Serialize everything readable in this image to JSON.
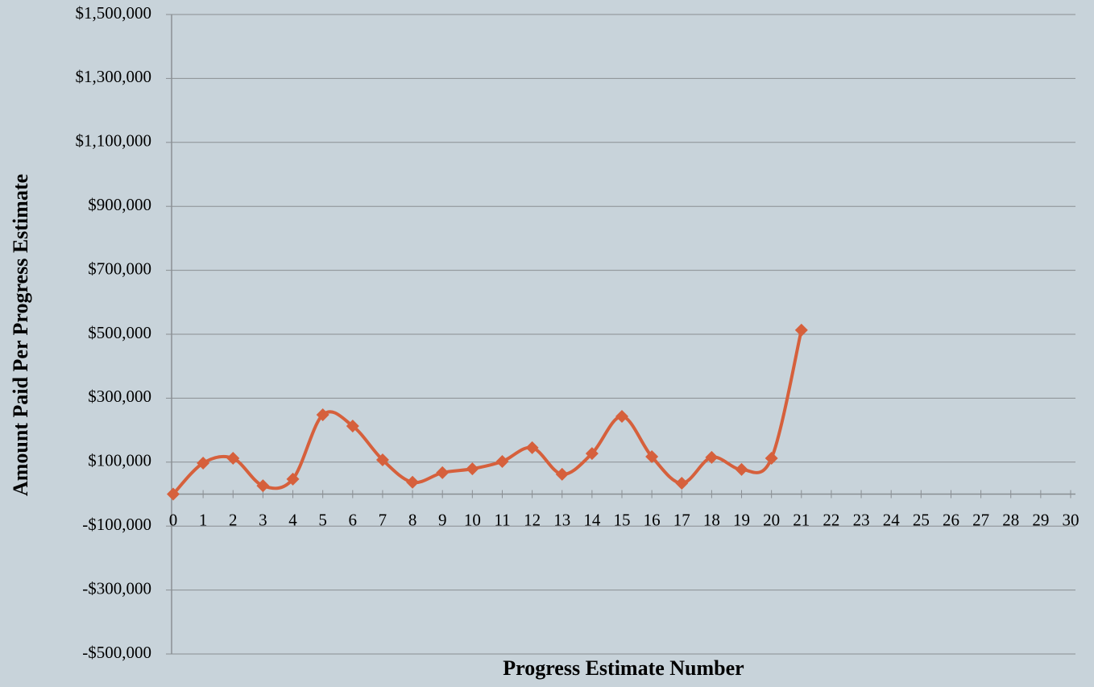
{
  "chart_data": {
    "type": "line",
    "x_label": "Progress Estimate Number",
    "y_label": "Amount Paid Per Progress Estimate",
    "x": [
      0,
      1,
      2,
      3,
      4,
      5,
      6,
      7,
      8,
      9,
      10,
      11,
      12,
      13,
      14,
      15,
      16,
      17,
      18,
      19,
      20,
      21
    ],
    "series": [
      {
        "name": "Amount Paid",
        "color": "#d6603c",
        "values": [
          0,
          97000,
          112000,
          26000,
          47000,
          248000,
          213000,
          107000,
          37000,
          67000,
          79000,
          102000,
          145000,
          62000,
          127000,
          243000,
          117000,
          34000,
          115000,
          77000,
          112000,
          513000
        ]
      }
    ],
    "xlim": [
      0,
      30
    ],
    "xticks": [
      0,
      1,
      2,
      3,
      4,
      5,
      6,
      7,
      8,
      9,
      10,
      11,
      12,
      13,
      14,
      15,
      16,
      17,
      18,
      19,
      20,
      21,
      22,
      23,
      24,
      25,
      26,
      27,
      28,
      29,
      30
    ],
    "ylim": [
      -500000,
      1500000
    ],
    "yticks": [
      {
        "value": -500000,
        "label": "-$500,000"
      },
      {
        "value": -300000,
        "label": "-$300,000"
      },
      {
        "value": -100000,
        "label": "-$100,000"
      },
      {
        "value": 100000,
        "label": "$100,000"
      },
      {
        "value": 300000,
        "label": "$300,000"
      },
      {
        "value": 500000,
        "label": "$500,000"
      },
      {
        "value": 700000,
        "label": "$700,000"
      },
      {
        "value": 900000,
        "label": "$900,000"
      },
      {
        "value": 1100000,
        "label": "$1,100,000"
      },
      {
        "value": 1300000,
        "label": "$1,300,000"
      },
      {
        "value": 1500000,
        "label": "$1,500,000"
      }
    ],
    "grid": true,
    "smooth": true,
    "marker": "diamond"
  }
}
